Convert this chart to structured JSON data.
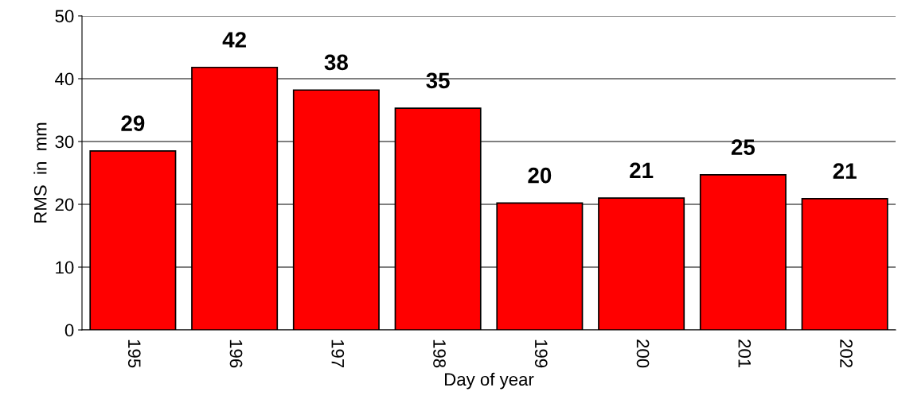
{
  "chart_data": {
    "type": "bar",
    "xlabel": "Day of year",
    "ylabel": "RMS  in  mm",
    "categories": [
      "195",
      "196",
      "197",
      "198",
      "199",
      "200",
      "201",
      "202"
    ],
    "values": [
      28.5,
      41.8,
      38.2,
      35.3,
      20.2,
      21.0,
      24.7,
      20.9
    ],
    "value_labels": [
      "29",
      "42",
      "38",
      "35",
      "20",
      "21",
      "25",
      "21"
    ],
    "color": "#ff0000",
    "ylim": [
      0,
      50
    ],
    "yticks": [
      0,
      10,
      20,
      30,
      40,
      50
    ],
    "grid": "y"
  }
}
